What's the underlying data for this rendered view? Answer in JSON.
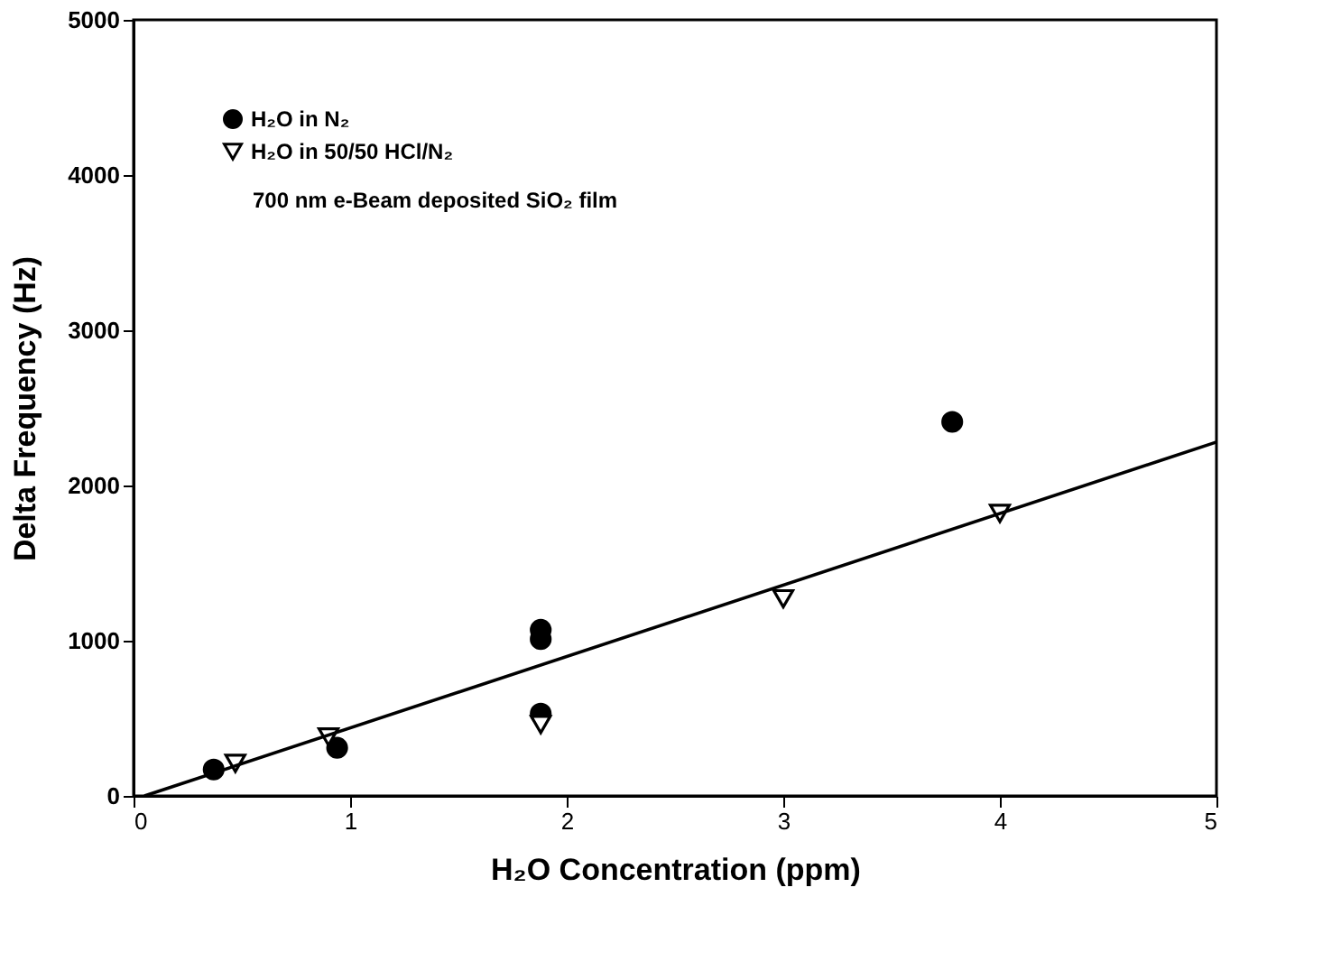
{
  "chart_data": {
    "type": "scatter",
    "xlabel": "H₂O Concentration (ppm)",
    "ylabel": "Delta Frequency (Hz)",
    "annotations": [
      "700 nm e-Beam deposited SiO₂ film"
    ],
    "xlim": [
      0,
      5
    ],
    "ylim": [
      0,
      5000
    ],
    "xticks": [
      0,
      1,
      2,
      3,
      4,
      5
    ],
    "yticks": [
      0,
      1000,
      2000,
      3000,
      4000,
      5000
    ],
    "grid": false,
    "legend": "top left",
    "series": [
      {
        "name": "H₂O in N₂",
        "color": "#000000",
        "marker": "circle",
        "x": [
          0.37,
          0.94,
          1.88,
          1.88,
          1.88,
          3.78
        ],
        "values": [
          170,
          310,
          1010,
          1070,
          530,
          2410
        ]
      },
      {
        "name": "H₂O in 50/50 HCl/N₂",
        "color": "#000000",
        "marker": "triangle",
        "x": [
          0.47,
          0.9,
          1.88,
          3.0,
          4.0
        ],
        "values": [
          210,
          380,
          460,
          1270,
          1820
        ]
      },
      {
        "type": "line",
        "color": "#000000",
        "marker": "none",
        "line_style": "solid",
        "x": [
          0.05,
          5
        ],
        "values": [
          0,
          2280
        ]
      }
    ]
  }
}
